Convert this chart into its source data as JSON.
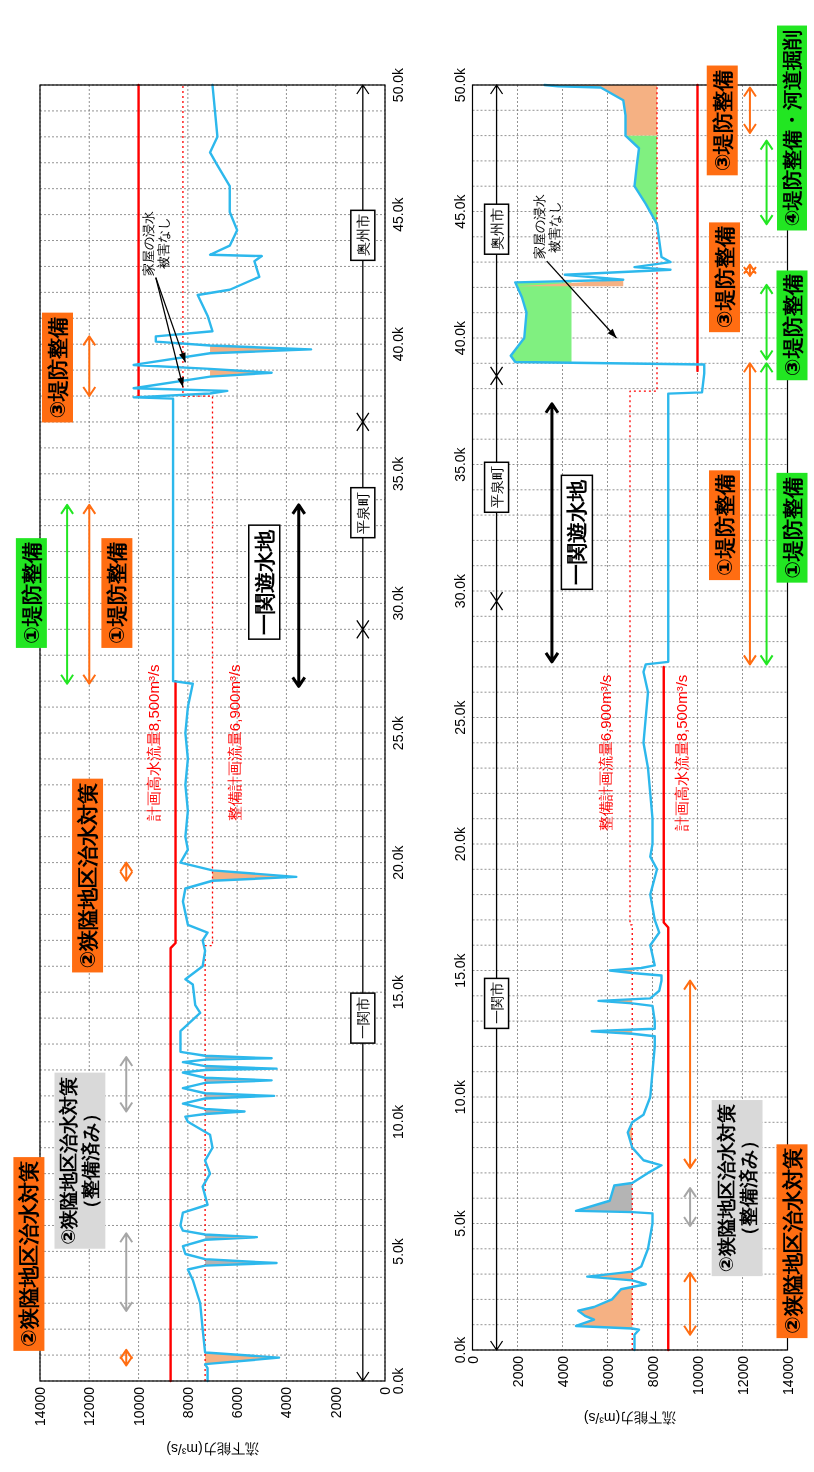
{
  "chart_data": [
    {
      "type": "line",
      "orientation": "horizontal",
      "ylim": [
        0,
        50
      ],
      "xlim": [
        14000,
        0
      ],
      "yticks": [
        {
          "value": 0,
          "label": "0.0k"
        },
        {
          "value": 1,
          "label": null
        },
        {
          "value": 2,
          "label": null
        },
        {
          "value": 3,
          "label": null
        },
        {
          "value": 4,
          "label": null
        },
        {
          "value": 5,
          "label": "5.0k"
        },
        {
          "value": 6,
          "label": null
        },
        {
          "value": 7,
          "label": null
        },
        {
          "value": 8,
          "label": null
        },
        {
          "value": 9,
          "label": null
        },
        {
          "value": 10,
          "label": "10.0k"
        },
        {
          "value": 11,
          "label": null
        },
        {
          "value": 12,
          "label": null
        },
        {
          "value": 13,
          "label": null
        },
        {
          "value": 14,
          "label": null
        },
        {
          "value": 15,
          "label": "15.0k"
        },
        {
          "value": 16,
          "label": null
        },
        {
          "value": 17,
          "label": null
        },
        {
          "value": 18,
          "label": null
        },
        {
          "value": 19,
          "label": null
        },
        {
          "value": 20,
          "label": "20.0k"
        },
        {
          "value": 21,
          "label": null
        },
        {
          "value": 22,
          "label": null
        },
        {
          "value": 23,
          "label": null
        },
        {
          "value": 24,
          "label": null
        },
        {
          "value": 25,
          "label": "25.0k"
        },
        {
          "value": 26,
          "label": null
        },
        {
          "value": 27,
          "label": null
        },
        {
          "value": 28,
          "label": null
        },
        {
          "value": 29,
          "label": null
        },
        {
          "value": 30,
          "label": "30.0k"
        },
        {
          "value": 31,
          "label": null
        },
        {
          "value": 32,
          "label": null
        },
        {
          "value": 33,
          "label": null
        },
        {
          "value": 34,
          "label": null
        },
        {
          "value": 35,
          "label": "35.0k"
        },
        {
          "value": 36,
          "label": null
        },
        {
          "value": 37,
          "label": null
        },
        {
          "value": 38,
          "label": null
        },
        {
          "value": 39,
          "label": null
        },
        {
          "value": 40,
          "label": "40.0k"
        },
        {
          "value": 41,
          "label": null
        },
        {
          "value": 42,
          "label": null
        },
        {
          "value": 43,
          "label": null
        },
        {
          "value": 44,
          "label": null
        },
        {
          "value": 45,
          "label": "45.0k"
        },
        {
          "value": 46,
          "label": null
        },
        {
          "value": 47,
          "label": null
        },
        {
          "value": 48,
          "label": null
        },
        {
          "value": 49,
          "label": null
        },
        {
          "value": 50,
          "label": "50.0k"
        }
      ],
      "xticks": [
        0,
        2000,
        4000,
        6000,
        8000,
        10000,
        12000,
        14000
      ],
      "xlabel": "流下能力(m³/s)",
      "grid": true,
      "series": [
        {
          "type": "line",
          "name": "計画高水流量8,500m³/s",
          "color": "#ff0000",
          "line_style": "solid",
          "x": [
            0,
            16.7,
            16.9,
            27,
            32,
            38,
            50
          ],
          "values": [
            8700,
            8700,
            8500,
            8500,
            null,
            10000,
            10000
          ]
        },
        {
          "type": "line",
          "name": "整備計画流量6,900m³/s",
          "color": "#ff0000",
          "line_style": "dotted",
          "x": [
            0,
            16.8,
            16.8,
            38,
            38,
            50
          ],
          "values": [
            7300,
            7300,
            7000,
            7000,
            8200,
            8200
          ]
        },
        {
          "type": "line",
          "color": "#f5b183",
          "x": [
            0.65,
            0.9,
            1.1
          ],
          "values": [
            null,
            null,
            null
          ],
          "lower": [
            7300,
            4300,
            7300
          ],
          "upper": [
            7300,
            7300,
            7300
          ]
        },
        {
          "type": "line",
          "color": "#b4b4b4",
          "x": [
            4.45,
            4.55,
            4.7
          ],
          "values": [
            null,
            null,
            null
          ],
          "lower": [
            7300,
            4400,
            7300
          ],
          "upper": [
            7300,
            7300,
            7300
          ]
        },
        {
          "type": "line",
          "color": "#b4b4b4",
          "x": [
            5.45,
            5.55,
            5.65
          ],
          "values": [
            null,
            null,
            null
          ],
          "lower": [
            7300,
            5200,
            7300
          ],
          "upper": [
            7300,
            7300,
            7300
          ]
        },
        {
          "type": "line",
          "color": "#b4b4b4",
          "x": [
            10.3,
            10.4,
            10.5
          ],
          "values": [
            null,
            null,
            null
          ],
          "lower": [
            7300,
            5700,
            7300
          ],
          "upper": [
            7300,
            7300,
            7300
          ]
        },
        {
          "type": "line",
          "color": "#b4b4b4",
          "x": [
            10.9,
            11,
            11.1
          ],
          "values": [
            null,
            null,
            null
          ],
          "lower": [
            7300,
            4500,
            7300
          ],
          "upper": [
            7300,
            7300,
            7300
          ]
        },
        {
          "type": "line",
          "color": "#b4b4b4",
          "x": [
            11.5,
            11.6,
            11.7
          ],
          "values": [
            null,
            null,
            null
          ],
          "lower": [
            7300,
            4600,
            7300
          ],
          "upper": [
            7300,
            7300,
            7300
          ]
        },
        {
          "type": "line",
          "color": "#b4b4b4",
          "x": [
            12,
            12.05,
            12.15
          ],
          "values": [
            null,
            null,
            null
          ],
          "lower": [
            7300,
            4400,
            7300
          ],
          "upper": [
            7300,
            7300,
            7300
          ]
        },
        {
          "type": "line",
          "color": "#b4b4b4",
          "x": [
            12.4,
            12.45,
            12.55
          ],
          "values": [
            null,
            null,
            null
          ],
          "lower": [
            7300,
            4600,
            7300
          ],
          "upper": [
            7300,
            7300,
            7300
          ]
        },
        {
          "type": "line",
          "color": "#f5b183",
          "x": [
            19.3,
            19.45,
            19.7
          ],
          "values": [
            null,
            null,
            null
          ],
          "lower": [
            7000,
            3600,
            7000
          ],
          "upper": [
            7000,
            7000,
            7000
          ]
        },
        {
          "type": "line",
          "color": "#f5b183",
          "x": [
            38.75,
            38.9,
            39.05
          ],
          "values": [
            null,
            null,
            null
          ],
          "lower": [
            7100,
            4600,
            7100
          ],
          "upper": [
            7100,
            7100,
            7100
          ]
        },
        {
          "type": "line",
          "color": "#f5b183",
          "x": [
            39.65,
            39.8,
            39.95
          ],
          "values": [
            null,
            null,
            null
          ],
          "lower": [
            7100,
            3000,
            7100
          ],
          "upper": [
            7100,
            7100,
            7100
          ]
        },
        {
          "type": "line",
          "color": "#2db8ec",
          "line_style": "solid",
          "x": [
            0,
            0.5,
            0.65,
            0.9,
            1.1,
            2,
            3,
            3.9,
            4.3,
            4.45,
            4.55,
            4.7,
            4.9,
            5.2,
            5.45,
            5.55,
            5.65,
            5.8,
            6,
            6.5,
            6.8,
            7.5,
            8,
            8.5,
            9,
            9.5,
            10,
            10.2,
            10.3,
            10.4,
            10.5,
            10.7,
            10.9,
            11,
            11.1,
            11.3,
            11.5,
            11.6,
            11.7,
            11.9,
            12,
            12.05,
            12.15,
            12.3,
            12.4,
            12.45,
            12.55,
            12.7,
            13.5,
            14.2,
            14.5,
            15.3,
            15.5,
            16,
            16.6,
            17,
            17.3,
            17.6,
            18.5,
            19,
            19.3,
            19.45,
            19.7,
            20,
            20.5,
            21,
            22,
            23,
            24,
            25,
            26,
            26.9,
            27,
            37.9,
            37.95,
            38.1,
            38.2,
            38.3,
            38.75,
            38.9,
            39.05,
            39.2,
            39.65,
            39.8,
            39.95,
            40.1,
            40.3,
            40.5,
            41.1,
            41.9,
            42.1,
            42.6,
            43.2,
            43.4,
            43.45,
            43.8,
            44.4,
            45.1,
            46.1,
            46.9,
            47.4,
            48,
            49,
            50
          ],
          "values": [
            7200,
            7200,
            7300,
            4300,
            7300,
            7400,
            7500,
            7800,
            8000,
            7300,
            4400,
            7300,
            8100,
            8200,
            7300,
            5200,
            7300,
            8200,
            8300,
            8200,
            7200,
            7400,
            7100,
            7300,
            7000,
            7100,
            8000,
            8100,
            7300,
            5700,
            7300,
            8200,
            7300,
            4500,
            7300,
            8200,
            7300,
            4600,
            7300,
            8200,
            7300,
            4400,
            7300,
            8200,
            7300,
            4600,
            7300,
            8300,
            8300,
            7500,
            7700,
            7800,
            8100,
            7400,
            7300,
            7400,
            7200,
            8000,
            8200,
            8100,
            7000,
            3600,
            7000,
            8300,
            8000,
            8100,
            8000,
            8100,
            8000,
            8100,
            8000,
            7800,
            8600,
            8600,
            10200,
            7100,
            6400,
            10200,
            7100,
            4600,
            7100,
            10200,
            7100,
            3000,
            7100,
            9300,
            9300,
            7000,
            7200,
            7600,
            6300,
            5100,
            5300,
            5000,
            7100,
            6300,
            6000,
            6300,
            6300,
            6800,
            7100,
            6800,
            6900,
            7000
          ]
        }
      ],
      "annotations": [
        "一関市",
        "平泉町",
        "奥州市",
        "一関遊水地",
        "①堤防整備",
        "①堤防整備",
        "③堤防整備",
        "②狭隘地区治水対策",
        "②狭隘地区治水対策",
        "②狭隘地区治水対策（整備済み）",
        {
          "text": "家屋の浸水被害なし",
          "x": 8200,
          "y": 38.35
        }
      ]
    },
    {
      "type": "line",
      "orientation": "horizontal",
      "ylim": [
        0,
        50
      ],
      "xlim": [
        0,
        14000
      ],
      "yticks": [
        {
          "value": 0,
          "label": "0.0k"
        },
        {
          "value": 1,
          "label": null
        },
        {
          "value": 2,
          "label": null
        },
        {
          "value": 3,
          "label": null
        },
        {
          "value": 4,
          "label": null
        },
        {
          "value": 5,
          "label": "5.0k"
        },
        {
          "value": 6,
          "label": null
        },
        {
          "value": 7,
          "label": null
        },
        {
          "value": 8,
          "label": null
        },
        {
          "value": 9,
          "label": null
        },
        {
          "value": 10,
          "label": "10.0k"
        },
        {
          "value": 11,
          "label": null
        },
        {
          "value": 12,
          "label": null
        },
        {
          "value": 13,
          "label": null
        },
        {
          "value": 14,
          "label": null
        },
        {
          "value": 15,
          "label": "15.0k"
        },
        {
          "value": 16,
          "label": null
        },
        {
          "value": 17,
          "label": null
        },
        {
          "value": 18,
          "label": null
        },
        {
          "value": 19,
          "label": null
        },
        {
          "value": 20,
          "label": "20.0k"
        },
        {
          "value": 21,
          "label": null
        },
        {
          "value": 22,
          "label": null
        },
        {
          "value": 23,
          "label": null
        },
        {
          "value": 24,
          "label": null
        },
        {
          "value": 25,
          "label": "25.0k"
        },
        {
          "value": 26,
          "label": null
        },
        {
          "value": 27,
          "label": null
        },
        {
          "value": 28,
          "label": null
        },
        {
          "value": 29,
          "label": null
        },
        {
          "value": 30,
          "label": "30.0k"
        },
        {
          "value": 31,
          "label": null
        },
        {
          "value": 32,
          "label": null
        },
        {
          "value": 33,
          "label": null
        },
        {
          "value": 34,
          "label": null
        },
        {
          "value": 35,
          "label": "35.0k"
        },
        {
          "value": 36,
          "label": null
        },
        {
          "value": 37,
          "label": null
        },
        {
          "value": 38,
          "label": null
        },
        {
          "value": 39,
          "label": null
        },
        {
          "value": 40,
          "label": "40.0k"
        },
        {
          "value": 41,
          "label": null
        },
        {
          "value": 42,
          "label": null
        },
        {
          "value": 43,
          "label": null
        },
        {
          "value": 44,
          "label": null
        },
        {
          "value": 45,
          "label": "45.0k"
        },
        {
          "value": 46,
          "label": null
        },
        {
          "value": 47,
          "label": null
        },
        {
          "value": 48,
          "label": null
        },
        {
          "value": 49,
          "label": null
        },
        {
          "value": 50,
          "label": "50.0k"
        }
      ],
      "xticks": [
        0,
        2000,
        4000,
        6000,
        8000,
        10000,
        12000,
        14000
      ],
      "xlabel": "流下能力(m³/s)",
      "grid": true,
      "series": [
        {
          "type": "line",
          "name": "計画高水流量8,500m³/s",
          "color": "#ff0000",
          "line_style": "solid",
          "x": [
            0,
            16.7,
            16.9,
            27,
            32,
            38.7,
            50
          ],
          "values": [
            8700,
            8700,
            8500,
            8500,
            null,
            10000,
            10000
          ]
        },
        {
          "type": "line",
          "name": "整備計画流量6,900m³/s",
          "color": "#ff0000",
          "line_style": "dotted",
          "x": [
            0,
            16.8,
            16.8,
            37.9,
            37.9,
            50
          ],
          "values": [
            7100,
            7100,
            7000,
            7000,
            8200,
            8200
          ]
        },
        {
          "type": "line",
          "color": "#f5b183",
          "x": [
            0.85,
            0.95,
            1.2,
            1.35,
            1.55,
            1.7,
            2,
            2.4,
            2.49
          ],
          "values": [
            null,
            null,
            null,
            null,
            null,
            null,
            null,
            null,
            null
          ],
          "lower": [
            7100,
            4600,
            5400,
            5000,
            4700,
            5400,
            6200,
            6600,
            7100
          ],
          "upper": [
            7100,
            7100,
            7100,
            7100,
            7100,
            7100,
            7100,
            7100,
            7100
          ]
        },
        {
          "type": "line",
          "color": "#f5b183",
          "x": [
            2.75,
            2.9,
            3.1
          ],
          "values": [
            null,
            null,
            null
          ],
          "lower": [
            7100,
            5100,
            7100
          ],
          "upper": [
            7100,
            7100,
            7100
          ]
        },
        {
          "type": "line",
          "color": "#b4b4b4",
          "x": [
            5.45,
            5.5,
            5.9,
            6.5,
            6.6
          ],
          "values": [
            null,
            null,
            null,
            null,
            null
          ],
          "lower": [
            7100,
            4600,
            6100,
            6300,
            7100
          ],
          "upper": [
            7100,
            7100,
            7100,
            7100,
            7100
          ]
        },
        {
          "type": "line",
          "color": "#f5b183",
          "x": [
            8,
            8.6,
            9
          ],
          "values": [
            null,
            null,
            null
          ],
          "lower": [
            7100,
            6900,
            7100
          ],
          "upper": [
            7100,
            7100,
            7100
          ]
        },
        {
          "type": "line",
          "color": "#f5b183",
          "x": [
            12.5,
            12.6,
            12.66
          ],
          "values": [
            null,
            null,
            null
          ],
          "lower": [
            7100,
            5300,
            7100
          ],
          "upper": [
            7100,
            7100,
            7100
          ]
        },
        {
          "type": "line",
          "color": "#f5b183",
          "x": [
            13.7,
            13.8,
            13.87
          ],
          "values": [
            null,
            null,
            null
          ],
          "lower": [
            7100,
            5600,
            7100
          ],
          "upper": [
            7100,
            7100,
            7100
          ]
        },
        {
          "type": "line",
          "color": "#f5b183",
          "x": [
            14.9,
            15,
            15.07
          ],
          "values": [
            null,
            null,
            null
          ],
          "lower": [
            7100,
            6100,
            7100
          ],
          "upper": [
            7100,
            7100,
            7100
          ]
        },
        {
          "type": "line",
          "color": "#80f080",
          "x": [
            39.05,
            39.3,
            40,
            41,
            41.6,
            42.2
          ],
          "values": [
            null,
            null,
            null,
            null,
            null,
            null
          ],
          "lower": [
            1900,
            1700,
            2300,
            2400,
            2200,
            1900
          ],
          "upper": [
            4400,
            4400,
            4400,
            4400,
            4400,
            4400
          ]
        },
        {
          "type": "line",
          "color": "#f5b183",
          "x": [
            42.05,
            42.3
          ],
          "values": [
            null,
            null
          ],
          "lower": [
            2000,
            6700
          ],
          "upper": [
            6700,
            6700
          ]
        },
        {
          "type": "line",
          "color": "#80f080",
          "x": [
            44.5,
            45.3,
            46,
            46.8,
            47.5,
            48
          ],
          "values": [
            null,
            null,
            null,
            null,
            null,
            null
          ],
          "lower": [
            8200,
            7700,
            7200,
            7300,
            7400,
            6800
          ],
          "upper": [
            8200,
            8200,
            8200,
            8200,
            8200,
            8200
          ]
        },
        {
          "type": "line",
          "color": "#f5b183",
          "x": [
            48,
            48.8,
            49.4,
            49.9,
            49.95,
            50
          ],
          "values": [
            null,
            null,
            null,
            null,
            null,
            null
          ],
          "lower": [
            6800,
            6800,
            6700,
            5700,
            3800,
            3200
          ],
          "upper": [
            8200,
            8200,
            8200,
            8200,
            8200,
            8200
          ]
        },
        {
          "type": "line",
          "color": "#2db8ec",
          "line_style": "solid",
          "x": [
            0,
            0.6,
            0.8,
            0.85,
            0.95,
            1.2,
            1.35,
            1.55,
            1.7,
            2,
            2.4,
            2.6,
            2.75,
            2.9,
            3.1,
            3.3,
            4,
            5,
            5.4,
            5.45,
            5.5,
            5.9,
            6.5,
            6.6,
            7,
            7.3,
            7.5,
            8,
            8.6,
            9,
            9.3,
            10,
            11,
            12,
            12.4,
            12.5,
            12.6,
            12.7,
            13,
            13.6,
            13.7,
            13.8,
            13.9,
            14.2,
            14.6,
            14.8,
            14.9,
            15,
            15.1,
            15.2,
            16,
            16.5,
            17,
            18,
            19,
            19.5,
            20,
            21,
            22,
            23,
            24,
            25,
            26,
            26.8,
            27.1,
            27.2,
            37.8,
            37.85,
            38.6,
            38.95,
            39.05,
            39.3,
            40,
            41,
            41.6,
            42.2,
            42.3,
            42.5,
            42.7,
            42.8,
            43,
            43.2,
            44.5,
            45.3,
            46,
            46.8,
            47.5,
            48,
            48.8,
            49.4,
            49.9,
            49.95,
            50
          ],
          "values": [
            7200,
            7200,
            7400,
            7100,
            4600,
            5400,
            5000,
            4700,
            5400,
            6200,
            6600,
            7700,
            7100,
            5100,
            7100,
            7500,
            7800,
            8000,
            8000,
            7100,
            4600,
            6100,
            6300,
            7100,
            7800,
            8400,
            7600,
            7100,
            6900,
            7100,
            7600,
            7900,
            8000,
            8100,
            8100,
            7100,
            5300,
            8100,
            8100,
            8000,
            7100,
            5600,
            7900,
            8300,
            8400,
            8400,
            7100,
            6100,
            7500,
            8100,
            7900,
            8300,
            8100,
            7900,
            8200,
            7900,
            8000,
            8000,
            7900,
            7800,
            7600,
            7700,
            7800,
            7600,
            7700,
            8700,
            8700,
            10200,
            10300,
            10300,
            1900,
            1700,
            2300,
            2400,
            2200,
            1900,
            6700,
            4100,
            8800,
            7200,
            8800,
            8400,
            8200,
            7700,
            7200,
            7300,
            7400,
            6800,
            6800,
            6700,
            5700,
            3800,
            3200
          ]
        }
      ],
      "annotations": [
        "一関市",
        "平泉町",
        "奥州市",
        "一関遊水地",
        "①堤防整備",
        "①堤防整備",
        "③堤防整備",
        "③堤防整備",
        "③堤防整備",
        "④堤防整備・河道掘削",
        "②狭隘地区治水対策",
        "②狭隘地区治水対策（整備済み）",
        "家屋の浸水被害なし"
      ]
    }
  ]
}
